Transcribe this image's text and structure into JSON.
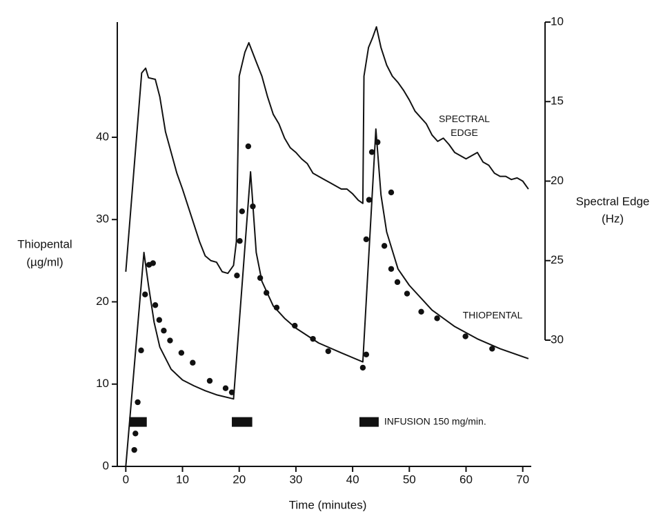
{
  "chart_data": {
    "type": "line",
    "xlabel": "Time (minutes)",
    "ylabel": [
      "Thiopental",
      "(µg/ml)"
    ],
    "y2label": [
      "Spectral Edge",
      "(Hz)"
    ],
    "xlim": [
      -1.5,
      71.5
    ],
    "xticks": [
      0,
      10,
      20,
      30,
      40,
      50,
      60,
      70
    ],
    "ylim": [
      0,
      54
    ],
    "yticks": [
      0,
      10,
      20,
      30,
      40
    ],
    "y2lim": [
      10,
      30
    ],
    "y2ticks": [
      10,
      15,
      20,
      25,
      30
    ],
    "y2_inverted": true,
    "color": "#111111",
    "series": [
      {
        "name": "THIOPENTAL",
        "color": "#111111",
        "x": [
          0,
          3.2,
          4,
          5,
          6,
          8,
          10,
          12,
          14,
          16,
          19,
          22,
          23,
          24,
          26,
          28,
          30,
          34,
          38,
          41.8,
          44.1,
          45,
          46,
          48,
          50,
          54,
          58,
          62,
          66,
          71
        ],
        "values": [
          0,
          26,
          22,
          17.5,
          14.5,
          11.8,
          10.5,
          9.8,
          9.2,
          8.7,
          8.2,
          35.8,
          26,
          22.5,
          19.5,
          18,
          16.8,
          15,
          13.8,
          12.7,
          41,
          33,
          28.5,
          24,
          22,
          19,
          17,
          15.5,
          14.3,
          13.1
        ]
      },
      {
        "name": "SPECTRAL EDGE",
        "color": "#111111",
        "axis": "y2",
        "x": [
          0,
          2.8,
          3.5,
          4,
          5.2,
          6,
          7,
          8,
          9,
          10,
          11,
          12,
          13,
          14,
          15,
          16,
          17,
          18,
          19,
          19.5,
          20,
          21,
          21.7,
          23,
          24,
          25,
          26,
          27,
          28,
          29,
          30,
          31,
          32,
          33,
          34,
          35,
          36,
          37,
          38,
          39,
          40,
          41,
          41.8,
          42,
          42.8,
          43.5,
          44.2,
          45,
          46,
          47,
          48,
          49,
          50,
          51,
          52,
          53,
          54,
          55,
          56,
          57,
          58,
          59,
          60,
          62,
          63,
          64,
          65,
          66,
          67,
          68,
          69,
          70,
          71
        ],
        "values": [
          25.7,
          13.2,
          12.9,
          13.5,
          13.6,
          14.7,
          16.9,
          18.2,
          19.5,
          20.5,
          21.6,
          22.7,
          23.8,
          24.7,
          25.0,
          25.1,
          25.7,
          25.8,
          25.3,
          23.8,
          13.4,
          11.9,
          11.3,
          12.5,
          13.4,
          14.7,
          15.8,
          16.4,
          17.3,
          17.9,
          18.2,
          18.6,
          18.9,
          19.5,
          19.7,
          19.9,
          20.1,
          20.3,
          20.5,
          20.5,
          20.8,
          21.2,
          21.4,
          13.4,
          11.6,
          11.0,
          10.3,
          11.6,
          12.7,
          13.4,
          13.8,
          14.3,
          14.9,
          15.6,
          16.0,
          16.4,
          17.1,
          17.5,
          17.3,
          17.7,
          18.2,
          18.4,
          18.6,
          18.2,
          18.8,
          19.0,
          19.5,
          19.7,
          19.7,
          19.9,
          19.8,
          20.0,
          20.5
        ]
      }
    ],
    "measured": {
      "x": [
        1.5,
        1.7,
        2.1,
        2.7,
        3.4,
        4.1,
        4.8,
        5.2,
        5.9,
        6.7,
        7.8,
        9.8,
        11.8,
        14.8,
        17.6,
        18.7,
        19.6,
        20.1,
        20.5,
        21.6,
        22.4,
        23.7,
        24.8,
        26.6,
        29.8,
        33.0,
        35.7,
        41.8,
        42.4,
        42.4,
        42.9,
        43.4,
        44.4,
        45.6,
        46.8,
        46.8,
        47.9,
        49.6,
        52.1,
        54.9,
        59.9,
        64.6
      ],
      "values": [
        2.0,
        4.0,
        7.8,
        14.1,
        20.9,
        24.5,
        24.7,
        19.6,
        17.8,
        16.5,
        15.3,
        13.8,
        12.6,
        10.4,
        9.5,
        9.0,
        23.2,
        27.4,
        31.0,
        38.9,
        31.6,
        22.9,
        21.1,
        19.3,
        17.1,
        15.5,
        14.0,
        12.0,
        13.6,
        27.6,
        32.4,
        38.2,
        39.4,
        26.8,
        24.0,
        33.3,
        22.4,
        21.0,
        18.8,
        18.0,
        15.8,
        14.3
      ]
    },
    "infusion": {
      "label": "INFUSION 150 mg/min.",
      "y": 5.4,
      "intervals": [
        [
          0.6,
          3.7
        ],
        [
          18.7,
          22.3
        ],
        [
          41.2,
          44.6
        ]
      ]
    }
  }
}
